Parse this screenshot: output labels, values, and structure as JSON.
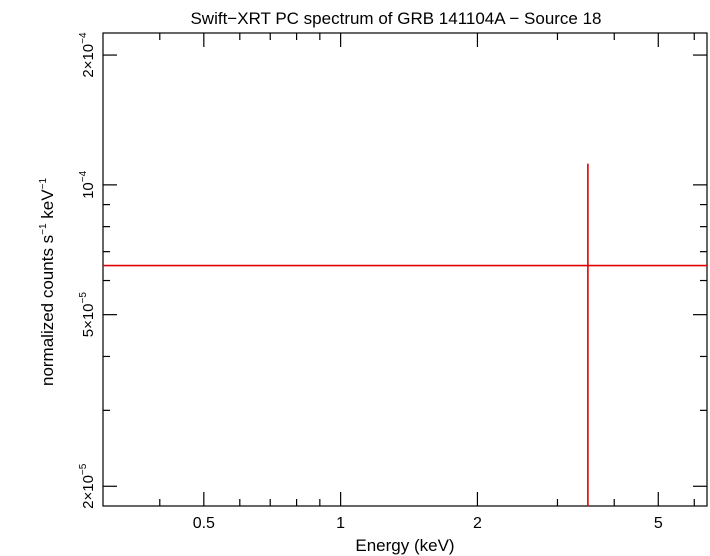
{
  "chart_data": {
    "type": "scatter",
    "title": "Swift−XRT PC spectrum of GRB 141104A − Source 18",
    "xlabel": "Energy (keV)",
    "ylabel_base": "normalized counts s",
    "ylabel_sup1": "−1",
    "ylabel_mid": " keV",
    "ylabel_sup2": "−1",
    "x_scale": "log",
    "y_scale": "log",
    "xlim": [
      0.3,
      6.4
    ],
    "ylim": [
      1.8e-05,
      0.000225
    ],
    "x_ticks_major": [
      {
        "value": 0.5,
        "label": "0.5"
      },
      {
        "value": 1,
        "label": "1"
      },
      {
        "value": 2,
        "label": "2"
      },
      {
        "value": 5,
        "label": "5"
      }
    ],
    "x_ticks_minor": [
      0.4,
      0.6,
      0.7,
      0.8,
      0.9,
      3,
      4,
      6
    ],
    "y_ticks_major": [
      {
        "value": 2e-05,
        "mant": "2×10",
        "exp": "−5"
      },
      {
        "value": 5e-05,
        "mant": "5×10",
        "exp": "−5"
      },
      {
        "value": 0.0001,
        "mant": "10",
        "exp": "−4"
      },
      {
        "value": 0.0002,
        "mant": "2×10",
        "exp": "−4"
      }
    ],
    "y_ticks_minor": [
      3e-05,
      4e-05,
      6e-05,
      7e-05,
      8e-05,
      9e-05
    ],
    "grid": false,
    "series": [
      {
        "color": "#e00000",
        "points": [
          {
            "x": 3.5,
            "x_low": 0.3,
            "x_high": 6.4,
            "y": 6.5e-05,
            "y_low": 1.8e-05,
            "y_high": 0.000112
          }
        ]
      }
    ]
  }
}
